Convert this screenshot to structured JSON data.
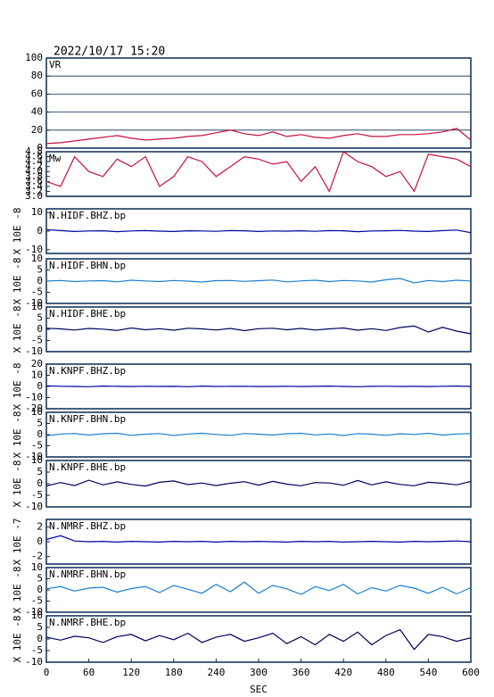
{
  "title": "2022/10/17 15:20",
  "chart_data": [
    {
      "type": "line",
      "title": "VR",
      "color": "#c8103c",
      "grid": true,
      "xlim": [
        0,
        600
      ],
      "ylim": [
        0,
        100
      ],
      "yticks": [
        0,
        20,
        40,
        60,
        80,
        100
      ],
      "x": [
        0,
        20,
        40,
        60,
        80,
        100,
        120,
        140,
        160,
        180,
        200,
        220,
        240,
        260,
        280,
        300,
        320,
        340,
        360,
        380,
        400,
        420,
        440,
        460,
        480,
        500,
        520,
        540,
        560,
        580,
        600
      ],
      "values": [
        5,
        6,
        8,
        10,
        12,
        14,
        11,
        9,
        10,
        11,
        13,
        14,
        17,
        20,
        16,
        14,
        18,
        13,
        15,
        12,
        11,
        14,
        16,
        13,
        13,
        15,
        15,
        16,
        18,
        22,
        9
      ]
    },
    {
      "type": "line",
      "title": "Mw",
      "color": "#c8103c",
      "xlim": [
        0,
        600
      ],
      "ylim": [
        3.0,
        4.8
      ],
      "yticks": [
        {
          "value": 3.0,
          "label": "3.0"
        },
        3.2,
        3.4,
        3.6,
        3.8,
        {
          "value": 4.0,
          "label": "4.0"
        },
        4.2,
        4.4,
        4.6,
        4.8
      ],
      "x": [
        0,
        20,
        40,
        60,
        80,
        100,
        120,
        140,
        160,
        180,
        200,
        220,
        240,
        260,
        280,
        300,
        320,
        340,
        360,
        380,
        400,
        420,
        440,
        460,
        480,
        500,
        520,
        540,
        560,
        580,
        600
      ],
      "values": [
        3.6,
        3.4,
        4.6,
        4.0,
        3.8,
        4.5,
        4.2,
        4.6,
        3.4,
        3.8,
        4.6,
        4.4,
        3.8,
        4.2,
        4.6,
        4.5,
        4.3,
        4.4,
        3.6,
        4.2,
        3.2,
        4.8,
        4.4,
        4.2,
        3.8,
        4.0,
        3.2,
        4.7,
        4.6,
        4.5,
        4.2
      ]
    },
    {
      "type": "line",
      "title": "N.HIDF.BHZ.bp",
      "ylabel": "X 10E -8",
      "color": "#0000a0",
      "xlim": [
        0,
        600
      ],
      "ylim": [
        -12,
        12
      ],
      "yticks": [
        10,
        0,
        -10
      ],
      "x": [
        0,
        20,
        40,
        60,
        80,
        100,
        120,
        140,
        160,
        180,
        200,
        220,
        240,
        260,
        280,
        300,
        320,
        340,
        360,
        380,
        400,
        420,
        440,
        460,
        480,
        500,
        520,
        540,
        560,
        580,
        600
      ],
      "values": [
        0.8,
        0.3,
        -0.2,
        0.1,
        0.2,
        -0.3,
        0.1,
        0.3,
        0,
        -0.2,
        0.2,
        0.1,
        -0.1,
        0.3,
        0.2,
        -0.2,
        0.1,
        0,
        0.2,
        -0.1,
        0.3,
        0.2,
        -0.3,
        0.1,
        0.2,
        0.4,
        0,
        -0.2,
        0.3,
        0.6,
        -0.8
      ]
    },
    {
      "type": "line",
      "title": "N.HIDF.BHN.bp",
      "ylabel": "X 10E -8",
      "color": "#1c7fd0",
      "xlim": [
        0,
        600
      ],
      "ylim": [
        -10,
        10
      ],
      "yticks": [
        10,
        5,
        0,
        -5,
        -10
      ],
      "x": [
        0,
        20,
        40,
        60,
        80,
        100,
        120,
        140,
        160,
        180,
        200,
        220,
        240,
        260,
        280,
        300,
        320,
        340,
        360,
        380,
        400,
        420,
        440,
        460,
        480,
        500,
        520,
        540,
        560,
        580,
        600
      ],
      "values": [
        0,
        0.3,
        -0.2,
        0.1,
        0.2,
        -0.3,
        0.4,
        0.1,
        -0.2,
        0.3,
        0,
        -0.4,
        0.2,
        0.3,
        -0.1,
        0.2,
        0.5,
        -0.3,
        0.1,
        0.4,
        -0.2,
        0.3,
        0.1,
        -0.4,
        0.6,
        1.2,
        -0.8,
        0.3,
        -0.2,
        0.4,
        0.1
      ]
    },
    {
      "type": "line",
      "title": "N.HIDF.BHE.bp",
      "ylabel": "X 10E -8",
      "color": "#000060",
      "xlim": [
        0,
        600
      ],
      "ylim": [
        -10,
        10
      ],
      "yticks": [
        10,
        5,
        0,
        -5,
        -10
      ],
      "x": [
        0,
        20,
        40,
        60,
        80,
        100,
        120,
        140,
        160,
        180,
        200,
        220,
        240,
        260,
        280,
        300,
        320,
        340,
        360,
        380,
        400,
        420,
        440,
        460,
        480,
        500,
        520,
        540,
        560,
        580,
        600
      ],
      "values": [
        0.5,
        0.2,
        -0.3,
        0.4,
        0.1,
        -0.5,
        0.6,
        -0.2,
        0.3,
        -0.4,
        0.5,
        0.2,
        -0.3,
        0.4,
        -0.6,
        0.3,
        0.5,
        -0.2,
        0.4,
        -0.3,
        0.2,
        0.6,
        -0.4,
        0.3,
        -0.5,
        0.8,
        1.5,
        -1.2,
        0.9,
        -0.8,
        -2.0
      ]
    },
    {
      "type": "line",
      "title": "N.KNPF.BHZ.bp",
      "ylabel": "X 10E -8",
      "color": "#0000a0",
      "xlim": [
        0,
        600
      ],
      "ylim": [
        -20,
        20
      ],
      "yticks": [
        20,
        10,
        0,
        -10,
        -20
      ],
      "x": [
        0,
        20,
        40,
        60,
        80,
        100,
        120,
        140,
        160,
        180,
        200,
        220,
        240,
        260,
        280,
        300,
        320,
        340,
        360,
        380,
        400,
        420,
        440,
        460,
        480,
        500,
        520,
        540,
        560,
        580,
        600
      ],
      "values": [
        0.5,
        0.2,
        0,
        -0.2,
        0.3,
        0.1,
        -0.1,
        0.2,
        0,
        0.1,
        -0.2,
        0.3,
        0,
        0.1,
        0.2,
        -0.1,
        0,
        0.2,
        -0.1,
        0.1,
        0.3,
        0,
        -0.2,
        0.1,
        0.2,
        0,
        0.1,
        -0.1,
        0.2,
        0.3,
        0
      ]
    },
    {
      "type": "line",
      "title": "N.KNPF.BHN.bp",
      "ylabel": "X 10E -8",
      "color": "#1c7fd0",
      "xlim": [
        0,
        600
      ],
      "ylim": [
        -10,
        10
      ],
      "yticks": [
        10,
        5,
        0,
        -5,
        -10
      ],
      "x": [
        0,
        20,
        40,
        60,
        80,
        100,
        120,
        140,
        160,
        180,
        200,
        220,
        240,
        260,
        280,
        300,
        320,
        340,
        360,
        380,
        400,
        420,
        440,
        460,
        480,
        500,
        520,
        540,
        560,
        580,
        600
      ],
      "values": [
        -0.5,
        0.3,
        0.5,
        -0.2,
        0.4,
        0.6,
        -0.3,
        0.2,
        0.5,
        -0.4,
        0.3,
        0.6,
        0.1,
        -0.3,
        0.5,
        0.2,
        -0.2,
        0.4,
        0.6,
        -0.1,
        0.3,
        -0.4,
        0.5,
        0.2,
        -0.3,
        0.4,
        0.1,
        0.6,
        -0.2,
        0.3,
        0.5
      ]
    },
    {
      "type": "line",
      "title": "N.KNPF.BHE.bp",
      "ylabel": "X 10E -8",
      "color": "#000060",
      "xlim": [
        0,
        600
      ],
      "ylim": [
        -10,
        10
      ],
      "yticks": [
        10,
        5,
        0,
        -5,
        -10
      ],
      "x": [
        0,
        20,
        40,
        60,
        80,
        100,
        120,
        140,
        160,
        180,
        200,
        220,
        240,
        260,
        280,
        300,
        320,
        340,
        360,
        380,
        400,
        420,
        440,
        460,
        480,
        500,
        520,
        540,
        560,
        580,
        600
      ],
      "values": [
        -1,
        0.5,
        -0.8,
        1.5,
        -0.5,
        0.8,
        -0.3,
        -1,
        0.6,
        1.2,
        -0.4,
        0.3,
        -0.8,
        0.2,
        0.9,
        -0.6,
        1.0,
        -0.2,
        -0.9,
        0.5,
        0.3,
        -0.7,
        1.4,
        -0.5,
        0.8,
        -0.3,
        -0.9,
        0.6,
        0.2,
        -0.5,
        1.0
      ]
    },
    {
      "type": "line",
      "title": "N.NMRF.BHZ.bp",
      "ylabel": "X 10E -7",
      "color": "#0000a0",
      "xlim": [
        0,
        600
      ],
      "ylim": [
        -3,
        3
      ],
      "yticks": [
        2,
        0,
        -2
      ],
      "x": [
        0,
        20,
        40,
        60,
        80,
        100,
        120,
        140,
        160,
        180,
        200,
        220,
        240,
        260,
        280,
        300,
        320,
        340,
        360,
        380,
        400,
        420,
        440,
        460,
        480,
        500,
        520,
        540,
        560,
        580,
        600
      ],
      "values": [
        0.3,
        0.8,
        0.1,
        0,
        0.05,
        -0.05,
        0.05,
        0,
        -0.05,
        0.05,
        0,
        0.05,
        -0.05,
        0.05,
        0,
        0.05,
        0,
        -0.05,
        0.05,
        0,
        0.05,
        -0.05,
        0,
        0.05,
        0,
        -0.05,
        0.05,
        0,
        0.05,
        0.1,
        0
      ]
    },
    {
      "type": "line",
      "title": "N.NMRF.BHN.bp",
      "ylabel": "X 10E -8",
      "color": "#1c7fd0",
      "xlim": [
        0,
        600
      ],
      "ylim": [
        -10,
        10
      ],
      "yticks": [
        10,
        5,
        0,
        -5,
        -10
      ],
      "x": [
        0,
        20,
        40,
        60,
        80,
        100,
        120,
        140,
        160,
        180,
        200,
        220,
        240,
        260,
        280,
        300,
        320,
        340,
        360,
        380,
        400,
        420,
        440,
        460,
        480,
        500,
        520,
        540,
        560,
        580,
        600
      ],
      "values": [
        0.5,
        1.5,
        -0.5,
        0.8,
        1.2,
        -1.0,
        0.6,
        1.5,
        -1.2,
        2.0,
        0.3,
        -1.5,
        2.5,
        -0.8,
        3.5,
        -1.5,
        2.0,
        0.5,
        -2.0,
        1.5,
        -0.3,
        2.5,
        -1.8,
        1.0,
        -0.5,
        2.0,
        0.8,
        -1.5,
        1.2,
        -1.8,
        1.0
      ]
    },
    {
      "type": "line",
      "title": "N.NMRF.BHE.bp",
      "ylabel": "X 10E -8",
      "color": "#000060",
      "xlim": [
        0,
        600
      ],
      "ylim": [
        -10,
        10
      ],
      "yticks": [
        10,
        5,
        0,
        -5,
        -10
      ],
      "xticks": [
        0,
        60,
        120,
        180,
        240,
        300,
        360,
        420,
        480,
        540,
        600
      ],
      "xlabel": "SEC",
      "x": [
        0,
        20,
        40,
        60,
        80,
        100,
        120,
        140,
        160,
        180,
        200,
        220,
        240,
        260,
        280,
        300,
        320,
        340,
        360,
        380,
        400,
        420,
        440,
        460,
        480,
        500,
        520,
        540,
        560,
        580,
        600
      ],
      "values": [
        0.8,
        -0.5,
        1.2,
        0.5,
        -1.5,
        1.0,
        2.0,
        -0.8,
        1.5,
        -0.3,
        2.5,
        -1.5,
        0.8,
        2.0,
        -1.0,
        0.5,
        2.5,
        -2.0,
        1.0,
        -2.5,
        2.0,
        -1.0,
        3.0,
        -2.5,
        1.5,
        4.0,
        -4.5,
        2.0,
        1.0,
        -1.0,
        0.5
      ]
    }
  ]
}
